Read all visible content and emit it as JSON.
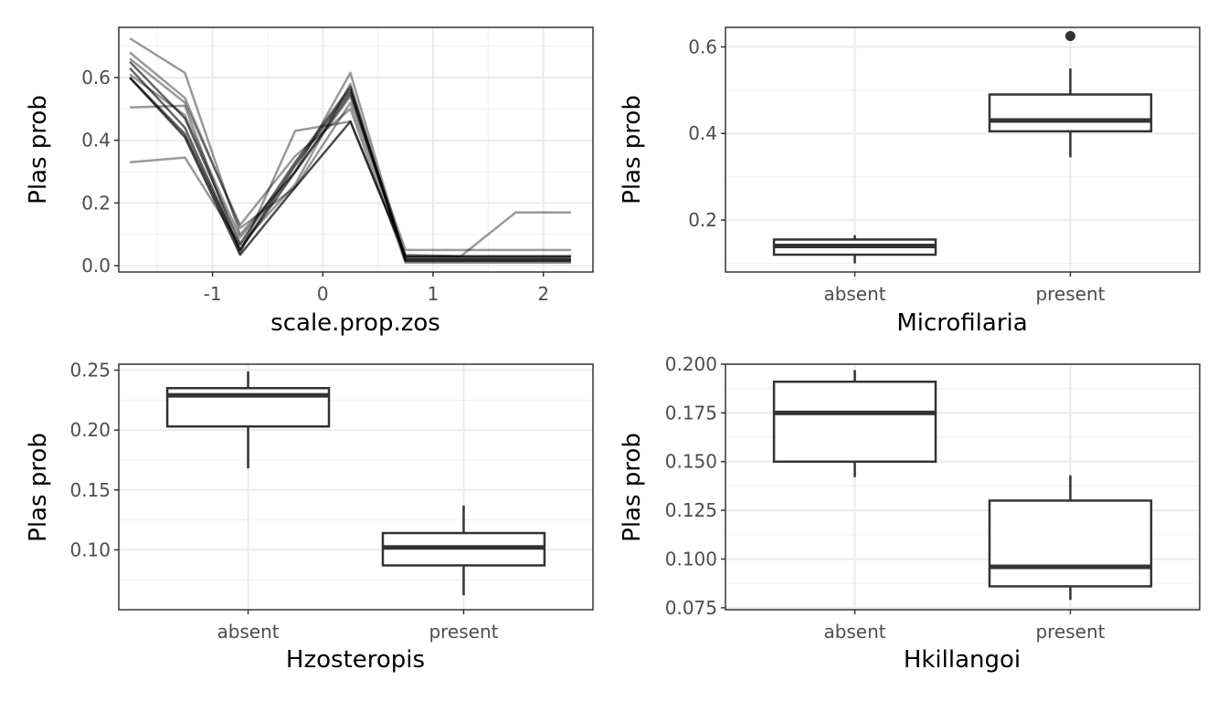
{
  "chart_data": [
    {
      "type": "line",
      "xlabel": "scale.prop.zos",
      "ylabel": "Plas prob",
      "xlim": [
        -1.85,
        2.45
      ],
      "ylim": [
        -0.02,
        0.76
      ],
      "x_ticks": [
        -1,
        0,
        1,
        2
      ],
      "x_tick_labels": [
        "-1",
        "0",
        "1",
        "2"
      ],
      "y_ticks": [
        0.0,
        0.2,
        0.4,
        0.6
      ],
      "y_tick_labels": [
        "0.0",
        "0.2",
        "0.4",
        "0.6"
      ],
      "grid": true,
      "x": [
        -1.75,
        -1.25,
        -0.75,
        -0.25,
        0.25,
        0.75,
        1.25,
        1.75,
        2.25
      ],
      "series": [
        {
          "values": [
            0.725,
            0.615,
            0.1,
            0.3,
            0.615,
            0.02,
            0.02,
            0.02,
            0.02
          ],
          "opacity": 0.4
        },
        {
          "values": [
            0.33,
            0.345,
            0.065,
            0.26,
            0.58,
            0.015,
            0.015,
            0.015,
            0.015
          ],
          "opacity": 0.4
        },
        {
          "values": [
            0.505,
            0.51,
            0.04,
            0.43,
            0.46,
            0.03,
            0.03,
            0.17,
            0.17
          ],
          "opacity": 0.4
        },
        {
          "values": [
            0.68,
            0.535,
            0.12,
            0.25,
            0.52,
            0.035,
            0.03,
            0.03,
            0.03
          ],
          "opacity": 0.4
        },
        {
          "values": [
            0.61,
            0.48,
            0.09,
            0.3,
            0.54,
            0.05,
            0.05,
            0.05,
            0.05
          ],
          "opacity": 0.4
        },
        {
          "values": [
            0.66,
            0.52,
            0.13,
            0.35,
            0.5,
            0.01,
            0.01,
            0.01,
            0.01
          ],
          "opacity": 0.4
        },
        {
          "values": [
            0.6,
            0.42,
            0.05,
            0.32,
            0.56,
            0.025,
            0.025,
            0.025,
            0.025
          ],
          "opacity": 0.6
        },
        {
          "values": [
            0.65,
            0.47,
            0.07,
            0.33,
            0.57,
            0.015,
            0.015,
            0.015,
            0.015
          ],
          "opacity": 0.6
        },
        {
          "values": [
            0.63,
            0.44,
            0.05,
            0.3,
            0.55,
            0.02,
            0.02,
            0.02,
            0.02
          ],
          "opacity": 0.6
        },
        {
          "values": [
            0.6,
            0.41,
            0.035,
            0.25,
            0.46,
            0.03,
            0.03,
            0.03,
            0.03
          ],
          "opacity": 0.7
        }
      ]
    },
    {
      "type": "box",
      "xlabel": "Microfilaria",
      "ylabel": "Plas prob",
      "ylim": [
        0.08,
        0.645
      ],
      "y_ticks": [
        0.2,
        0.4,
        0.6
      ],
      "y_tick_labels": [
        "0.2",
        "0.4",
        "0.6"
      ],
      "categories": [
        "absent",
        "present"
      ],
      "boxes": [
        {
          "category": "absent",
          "whisker_low": 0.1,
          "q1": 0.12,
          "median": 0.14,
          "q3": 0.155,
          "whisker_high": 0.165,
          "outliers": []
        },
        {
          "category": "present",
          "whisker_low": 0.345,
          "q1": 0.405,
          "median": 0.43,
          "q3": 0.49,
          "whisker_high": 0.55,
          "outliers": [
            0.625
          ]
        }
      ]
    },
    {
      "type": "box",
      "xlabel": "Hzosteropis",
      "ylabel": "Plas prob",
      "ylim": [
        0.05,
        0.255
      ],
      "y_ticks": [
        0.1,
        0.15,
        0.2,
        0.25
      ],
      "y_tick_labels": [
        "0.10",
        "0.15",
        "0.20",
        "0.25"
      ],
      "categories": [
        "absent",
        "present"
      ],
      "boxes": [
        {
          "category": "absent",
          "whisker_low": 0.168,
          "q1": 0.203,
          "median": 0.229,
          "q3": 0.235,
          "whisker_high": 0.249,
          "outliers": []
        },
        {
          "category": "present",
          "whisker_low": 0.062,
          "q1": 0.087,
          "median": 0.102,
          "q3": 0.114,
          "whisker_high": 0.137,
          "outliers": []
        }
      ]
    },
    {
      "type": "box",
      "xlabel": "Hkillangoi",
      "ylabel": "Plas prob",
      "ylim": [
        0.074,
        0.2
      ],
      "y_ticks": [
        0.075,
        0.1,
        0.125,
        0.15,
        0.175,
        0.2
      ],
      "y_tick_labels": [
        "0.075",
        "0.100",
        "0.125",
        "0.150",
        "0.175",
        "0.200"
      ],
      "categories": [
        "absent",
        "present"
      ],
      "boxes": [
        {
          "category": "absent",
          "whisker_low": 0.142,
          "q1": 0.15,
          "median": 0.175,
          "q3": 0.191,
          "whisker_high": 0.197,
          "outliers": []
        },
        {
          "category": "present",
          "whisker_low": 0.079,
          "q1": 0.086,
          "median": 0.096,
          "q3": 0.13,
          "whisker_high": 0.143,
          "outliers": []
        }
      ]
    }
  ]
}
